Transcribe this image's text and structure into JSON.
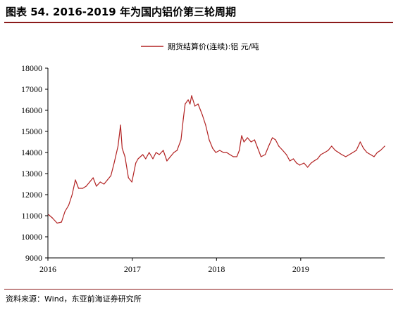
{
  "header": {
    "title": "图表 54. 2016-2019 年为国内铝价第三轮周期"
  },
  "footer": {
    "source": "资料来源：Wind，东亚前海证券研究所"
  },
  "colors": {
    "series": "#b22222",
    "rule": "#8b1a1a",
    "axis": "#000000"
  },
  "chart_data": {
    "type": "line",
    "title": "",
    "xlabel": "",
    "ylabel": "",
    "ylim": [
      9000,
      18000
    ],
    "yticks": [
      9000,
      10000,
      11000,
      12000,
      13000,
      14000,
      15000,
      16000,
      17000,
      18000
    ],
    "xlim": [
      "2016-01-01",
      "2019-12-31"
    ],
    "xticks": [
      "2016",
      "2017",
      "2018",
      "2019"
    ],
    "grid": false,
    "legend_position": "top-center",
    "series": [
      {
        "name": "期货结算价(连续):铝 元/吨",
        "x": [
          "2016-01-04",
          "2016-01-20",
          "2016-02-10",
          "2016-02-29",
          "2016-03-15",
          "2016-03-31",
          "2016-04-15",
          "2016-04-29",
          "2016-05-13",
          "2016-05-31",
          "2016-06-15",
          "2016-06-30",
          "2016-07-15",
          "2016-07-29",
          "2016-08-15",
          "2016-08-31",
          "2016-09-15",
          "2016-09-30",
          "2016-10-14",
          "2016-10-31",
          "2016-11-11",
          "2016-11-18",
          "2016-11-30",
          "2016-12-15",
          "2016-12-30",
          "2017-01-16",
          "2017-01-26",
          "2017-02-15",
          "2017-02-28",
          "2017-03-15",
          "2017-03-31",
          "2017-04-14",
          "2017-04-28",
          "2017-05-15",
          "2017-05-31",
          "2017-06-15",
          "2017-06-30",
          "2017-07-14",
          "2017-07-31",
          "2017-08-10",
          "2017-08-18",
          "2017-08-31",
          "2017-09-08",
          "2017-09-15",
          "2017-09-29",
          "2017-10-13",
          "2017-10-31",
          "2017-11-15",
          "2017-11-30",
          "2017-12-15",
          "2017-12-29",
          "2018-01-15",
          "2018-01-31",
          "2018-02-14",
          "2018-02-28",
          "2018-03-15",
          "2018-03-30",
          "2018-04-10",
          "2018-04-20",
          "2018-04-30",
          "2018-05-15",
          "2018-05-31",
          "2018-06-15",
          "2018-06-29",
          "2018-07-13",
          "2018-07-31",
          "2018-08-15",
          "2018-08-31",
          "2018-09-14",
          "2018-09-28",
          "2018-10-15",
          "2018-10-31",
          "2018-11-15",
          "2018-11-30",
          "2018-12-14",
          "2018-12-28",
          "2019-01-15",
          "2019-01-31",
          "2019-02-15",
          "2019-02-28",
          "2019-03-15",
          "2019-03-29",
          "2019-04-15",
          "2019-04-30",
          "2019-05-15",
          "2019-05-31",
          "2019-06-14",
          "2019-06-28",
          "2019-07-15",
          "2019-07-31",
          "2019-08-15",
          "2019-08-30",
          "2019-09-16",
          "2019-09-30",
          "2019-10-15",
          "2019-10-31",
          "2019-11-15",
          "2019-11-29",
          "2019-12-13",
          "2019-12-31"
        ],
        "values": [
          11050,
          10900,
          10650,
          10700,
          11200,
          11500,
          12000,
          12700,
          12300,
          12300,
          12400,
          12600,
          12800,
          12400,
          12600,
          12500,
          12700,
          12900,
          13500,
          14300,
          15300,
          14200,
          13800,
          12800,
          12600,
          13500,
          13700,
          13900,
          13700,
          14000,
          13700,
          14000,
          13900,
          14100,
          13600,
          13800,
          14000,
          14100,
          14600,
          15600,
          16300,
          16500,
          16300,
          16700,
          16200,
          16300,
          15800,
          15300,
          14600,
          14200,
          14000,
          14100,
          14000,
          14000,
          13900,
          13800,
          13800,
          14100,
          14800,
          14500,
          14700,
          14500,
          14600,
          14200,
          13800,
          13900,
          14300,
          14700,
          14600,
          14300,
          14100,
          13900,
          13600,
          13700,
          13500,
          13400,
          13500,
          13300,
          13500,
          13600,
          13700,
          13900,
          14000,
          14100,
          14300,
          14100,
          14000,
          13900,
          13800,
          13900,
          14000,
          14100,
          14500,
          14200,
          14000,
          13900,
          13800,
          14000,
          14100,
          14300
        ]
      }
    ]
  }
}
